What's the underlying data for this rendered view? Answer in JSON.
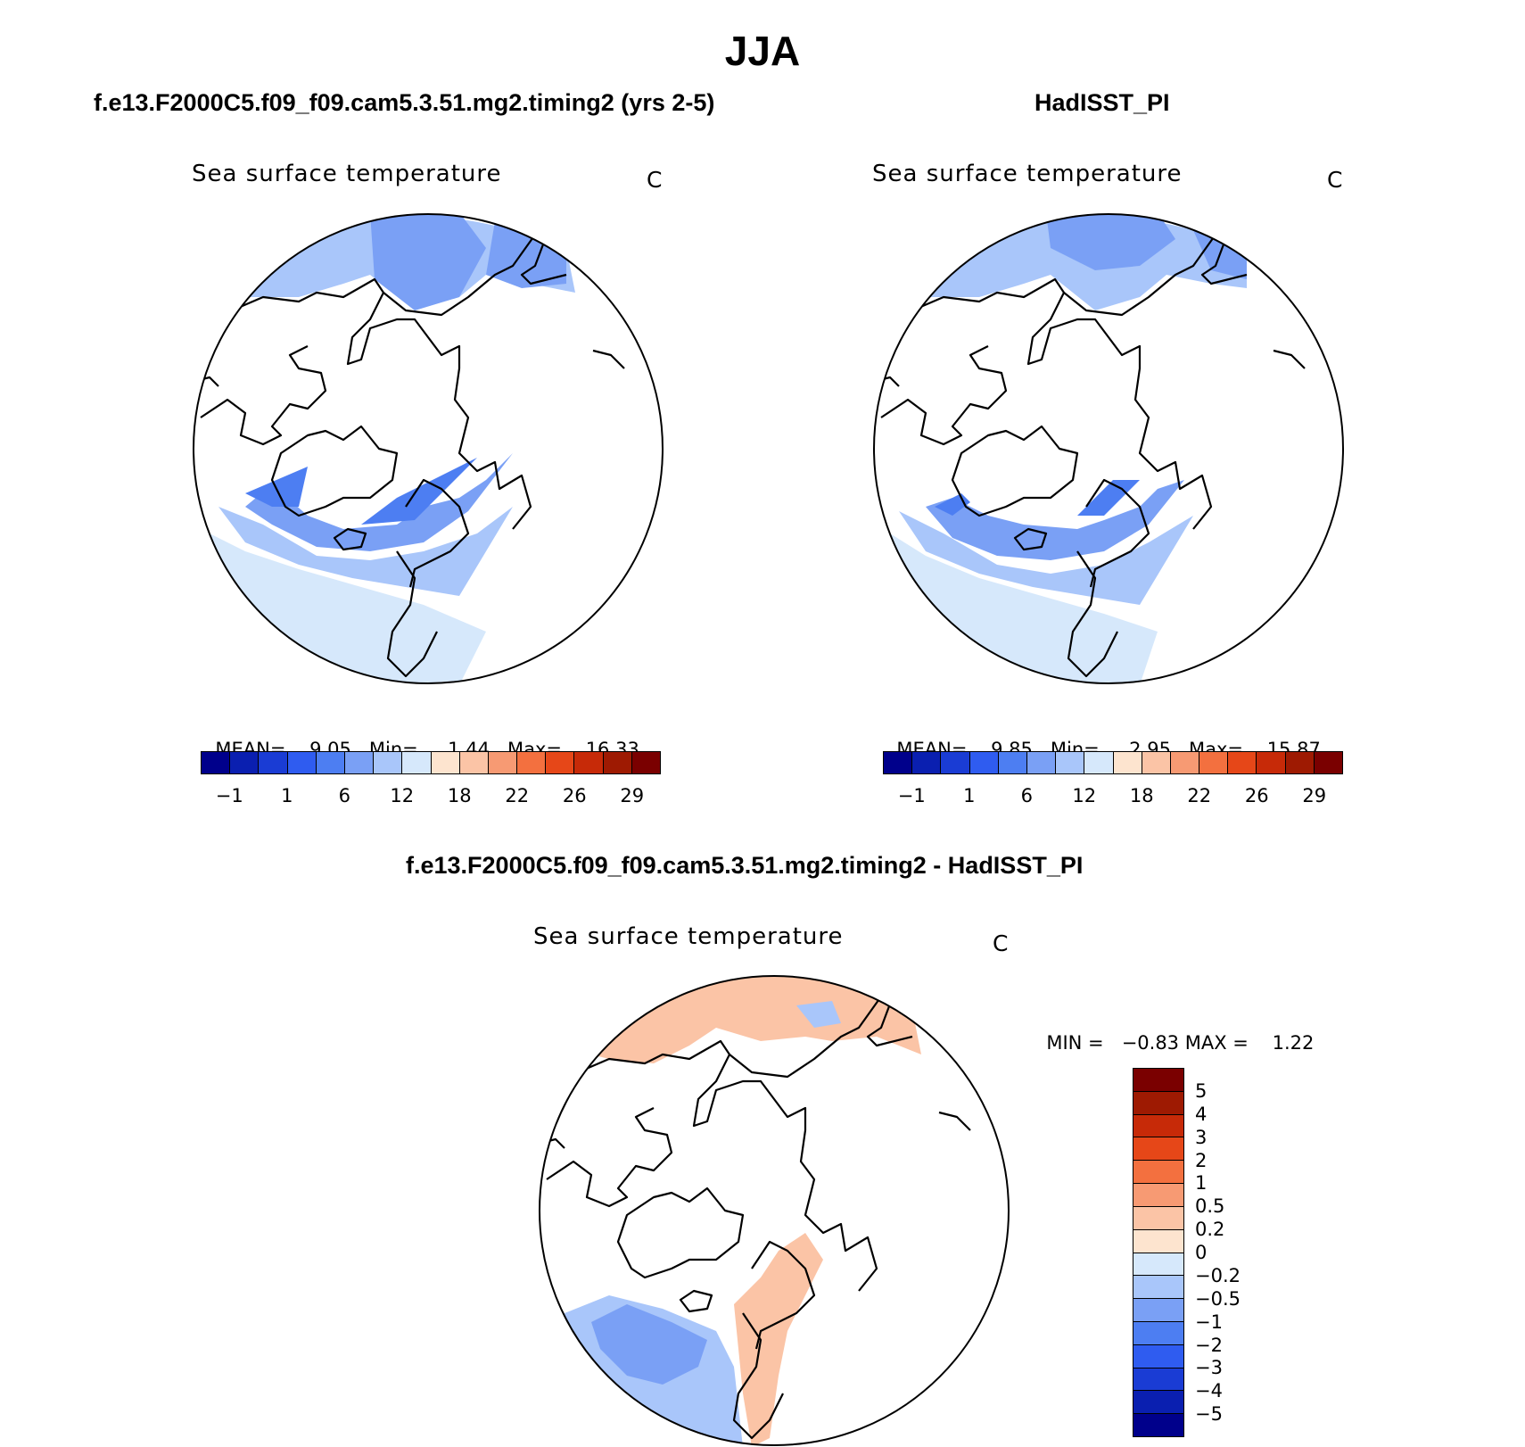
{
  "title": "JJA",
  "panels": {
    "top_left": {
      "case": "f.e13.F2000C5.f09_f09.cam5.3.51.mg2.timing2 (yrs 2-5)",
      "variable": "Sea surface temperature",
      "units": "C",
      "stats": {
        "mean_label": "MEAN=",
        "mean": "9.05",
        "min_label": "Min=",
        "min": "1.44",
        "max_label": "Max=",
        "max": "16.33"
      }
    },
    "top_right": {
      "case": "HadISST_PI",
      "variable": "Sea surface temperature",
      "units": "C",
      "stats": {
        "mean_label": "MEAN=",
        "mean": "9.85",
        "min_label": "Min=",
        "min": "2.95",
        "max_label": "Max=",
        "max": "15.87"
      }
    },
    "bottom": {
      "case": "f.e13.F2000C5.f09_f09.cam5.3.51.mg2.timing2 - HadISST_PI",
      "variable": "Sea surface temperature",
      "units": "C",
      "stats": {
        "min_label": "MIN =",
        "min": "−0.83",
        "max_label": "MAX =",
        "max": "1.22"
      }
    }
  },
  "colorbar_abs": {
    "ticks": [
      "−1",
      "1",
      "6",
      "12",
      "18",
      "22",
      "26",
      "29"
    ],
    "colors": [
      "#00008b",
      "#0a1fb0",
      "#1a3cd4",
      "#2f5cf0",
      "#4d7ef2",
      "#7aa0f5",
      "#a9c6fa",
      "#d6e8fb",
      "#fde4cf",
      "#fbc4a6",
      "#f79a73",
      "#f3703f",
      "#e64718",
      "#c72a08",
      "#9e1a02",
      "#7a0000"
    ]
  },
  "colorbar_diff": {
    "ticks": [
      "5",
      "4",
      "3",
      "2",
      "1",
      "0.5",
      "0.2",
      "0",
      "−0.2",
      "−0.5",
      "−1",
      "−2",
      "−3",
      "−4",
      "−5"
    ],
    "colors": [
      "#00008b",
      "#0a1fb0",
      "#1a3cd4",
      "#2f5cf0",
      "#4d7ef2",
      "#7aa0f5",
      "#a9c6fa",
      "#d6e8fb",
      "#fde4cf",
      "#fbc4a6",
      "#f79a73",
      "#f3703f",
      "#e64718",
      "#c72a08",
      "#9e1a02",
      "#7a0000"
    ]
  },
  "map_colors": {
    "sst_mid": "#a9c6fa",
    "sst_cold": "#7aa0f5",
    "sst_colder": "#4d7ef2",
    "sst_warm": "#d6e8fb",
    "sst_light": "#fde4cf",
    "diff_pos": "#fbc4a6",
    "diff_neg": "#7aa0f5",
    "diff_neg_light": "#a9c6fa"
  }
}
